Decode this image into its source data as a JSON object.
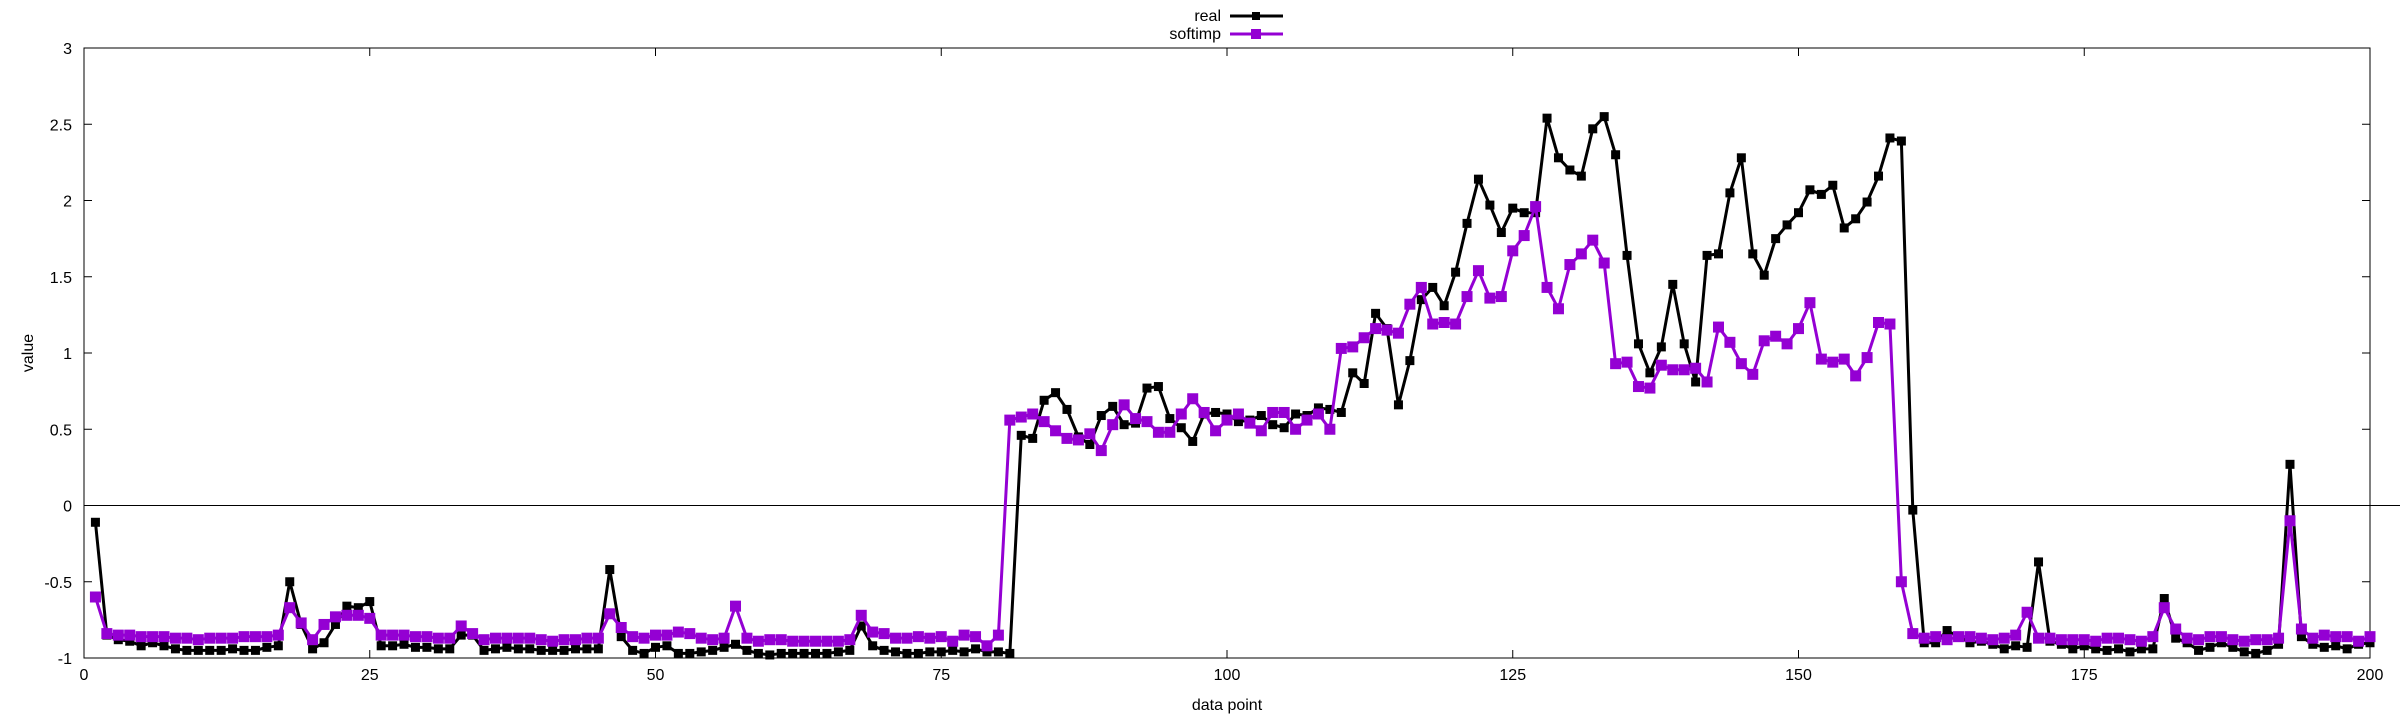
{
  "chart_data": {
    "type": "line",
    "xlabel": "data point",
    "ylabel": "value",
    "xlim": [
      0,
      200
    ],
    "ylim": [
      -1,
      3
    ],
    "xticks": [
      "0",
      "25",
      "50",
      "75",
      "100",
      "125",
      "150",
      "175",
      "200"
    ],
    "yticks": [
      "-1",
      "-0.5",
      "0",
      "0.5",
      "1",
      "1.5",
      "2",
      "2.5",
      "3"
    ],
    "zero_line": true,
    "grid": false,
    "legend_position": "top-center",
    "x": [
      1,
      2,
      3,
      4,
      5,
      6,
      7,
      8,
      9,
      10,
      11,
      12,
      13,
      14,
      15,
      16,
      17,
      18,
      19,
      20,
      21,
      22,
      23,
      24,
      25,
      26,
      27,
      28,
      29,
      30,
      31,
      32,
      33,
      34,
      35,
      36,
      37,
      38,
      39,
      40,
      41,
      42,
      43,
      44,
      45,
      46,
      47,
      48,
      49,
      50,
      51,
      52,
      53,
      54,
      55,
      56,
      57,
      58,
      59,
      60,
      61,
      62,
      63,
      64,
      65,
      66,
      67,
      68,
      69,
      70,
      71,
      72,
      73,
      74,
      75,
      76,
      77,
      78,
      79,
      80,
      81,
      82,
      83,
      84,
      85,
      86,
      87,
      88,
      89,
      90,
      91,
      92,
      93,
      94,
      95,
      96,
      97,
      98,
      99,
      100,
      101,
      102,
      103,
      104,
      105,
      106,
      107,
      108,
      109,
      110,
      111,
      112,
      113,
      114,
      115,
      116,
      117,
      118,
      119,
      120,
      121,
      122,
      123,
      124,
      125,
      126,
      127,
      128,
      129,
      130,
      131,
      132,
      133,
      134,
      135,
      136,
      137,
      138,
      139,
      140,
      141,
      142,
      143,
      144,
      145,
      146,
      147,
      148,
      149,
      150,
      151,
      152,
      153,
      154,
      155,
      156,
      157,
      158,
      159,
      160,
      161,
      162,
      163,
      164,
      165,
      166,
      167,
      168,
      169,
      170,
      171,
      172,
      173,
      174,
      175,
      176,
      177,
      178,
      179,
      180,
      181,
      182,
      183,
      184,
      185,
      186,
      187,
      188,
      189,
      190,
      191,
      192,
      193,
      194,
      195,
      196,
      197,
      198,
      199,
      200
    ],
    "series": [
      {
        "name": "real",
        "color": "#000000",
        "values": [
          -0.11,
          -0.85,
          -0.88,
          -0.89,
          -0.92,
          -0.9,
          -0.92,
          -0.94,
          -0.95,
          -0.95,
          -0.95,
          -0.95,
          -0.94,
          -0.95,
          -0.95,
          -0.93,
          -0.92,
          -0.5,
          -0.78,
          -0.94,
          -0.9,
          -0.78,
          -0.66,
          -0.67,
          -0.63,
          -0.92,
          -0.92,
          -0.91,
          -0.93,
          -0.93,
          -0.94,
          -0.94,
          -0.85,
          -0.85,
          -0.95,
          -0.94,
          -0.93,
          -0.94,
          -0.94,
          -0.95,
          -0.95,
          -0.95,
          -0.94,
          -0.94,
          -0.94,
          -0.42,
          -0.86,
          -0.95,
          -0.97,
          -0.93,
          -0.92,
          -0.97,
          -0.97,
          -0.96,
          -0.95,
          -0.93,
          -0.91,
          -0.95,
          -0.97,
          -0.98,
          -0.97,
          -0.97,
          -0.97,
          -0.97,
          -0.97,
          -0.96,
          -0.95,
          -0.79,
          -0.92,
          -0.95,
          -0.96,
          -0.97,
          -0.97,
          -0.96,
          -0.96,
          -0.95,
          -0.96,
          -0.94,
          -0.96,
          -0.96,
          -0.97,
          0.46,
          0.44,
          0.69,
          0.74,
          0.63,
          0.45,
          0.4,
          0.59,
          0.65,
          0.53,
          0.54,
          0.77,
          0.78,
          0.57,
          0.51,
          0.42,
          0.6,
          0.61,
          0.6,
          0.55,
          0.56,
          0.59,
          0.53,
          0.51,
          0.6,
          0.59,
          0.64,
          0.63,
          0.61,
          0.87,
          0.8,
          1.26,
          1.16,
          0.66,
          0.95,
          1.35,
          1.43,
          1.31,
          1.53,
          1.85,
          2.14,
          1.97,
          1.79,
          1.95,
          1.92,
          1.92,
          2.54,
          2.28,
          2.2,
          2.16,
          2.47,
          2.55,
          2.3,
          1.64,
          1.06,
          0.87,
          1.04,
          1.45,
          1.06,
          0.81,
          1.64,
          1.65,
          2.05,
          2.28,
          1.65,
          1.51,
          1.75,
          1.84,
          1.92,
          2.07,
          2.04,
          2.1,
          1.82,
          1.88,
          1.99,
          2.16,
          2.41,
          2.39,
          -0.03,
          -0.9,
          -0.9,
          -0.82,
          -0.86,
          -0.9,
          -0.89,
          -0.91,
          -0.94,
          -0.92,
          -0.93,
          -0.37,
          -0.89,
          -0.91,
          -0.94,
          -0.92,
          -0.94,
          -0.95,
          -0.94,
          -0.96,
          -0.94,
          -0.94,
          -0.61,
          -0.87,
          -0.9,
          -0.95,
          -0.93,
          -0.9,
          -0.93,
          -0.96,
          -0.97,
          -0.95,
          -0.91,
          0.27,
          -0.86,
          -0.91,
          -0.93,
          -0.92,
          -0.94,
          -0.91,
          -0.9
        ]
      },
      {
        "name": "softimp",
        "color": "#9400d3",
        "values": [
          -0.6,
          -0.84,
          -0.85,
          -0.85,
          -0.86,
          -0.86,
          -0.86,
          -0.87,
          -0.87,
          -0.88,
          -0.87,
          -0.87,
          -0.87,
          -0.86,
          -0.86,
          -0.86,
          -0.85,
          -0.67,
          -0.77,
          -0.88,
          -0.78,
          -0.73,
          -0.72,
          -0.72,
          -0.74,
          -0.85,
          -0.85,
          -0.85,
          -0.86,
          -0.86,
          -0.87,
          -0.87,
          -0.79,
          -0.84,
          -0.88,
          -0.87,
          -0.87,
          -0.87,
          -0.87,
          -0.88,
          -0.89,
          -0.88,
          -0.88,
          -0.87,
          -0.87,
          -0.71,
          -0.8,
          -0.86,
          -0.87,
          -0.85,
          -0.85,
          -0.83,
          -0.84,
          -0.87,
          -0.88,
          -0.87,
          -0.66,
          -0.87,
          -0.89,
          -0.88,
          -0.88,
          -0.89,
          -0.89,
          -0.89,
          -0.89,
          -0.89,
          -0.88,
          -0.72,
          -0.83,
          -0.84,
          -0.87,
          -0.87,
          -0.86,
          -0.87,
          -0.86,
          -0.89,
          -0.85,
          -0.86,
          -0.92,
          -0.85,
          0.56,
          0.58,
          0.6,
          0.55,
          0.49,
          0.44,
          0.43,
          0.47,
          0.36,
          0.53,
          0.66,
          0.57,
          0.55,
          0.48,
          0.48,
          0.6,
          0.7,
          0.61,
          0.49,
          0.56,
          0.6,
          0.54,
          0.49,
          0.61,
          0.61,
          0.5,
          0.56,
          0.6,
          0.5,
          1.03,
          1.04,
          1.1,
          1.16,
          1.15,
          1.13,
          1.32,
          1.43,
          1.19,
          1.2,
          1.19,
          1.37,
          1.54,
          1.36,
          1.37,
          1.67,
          1.77,
          1.96,
          1.43,
          1.29,
          1.58,
          1.65,
          1.74,
          1.59,
          0.93,
          0.94,
          0.78,
          0.77,
          0.92,
          0.89,
          0.89,
          0.9,
          0.81,
          1.17,
          1.07,
          0.93,
          0.86,
          1.08,
          1.11,
          1.06,
          1.16,
          1.33,
          0.96,
          0.94,
          0.96,
          0.85,
          0.97,
          1.2,
          1.19,
          -0.5,
          -0.84,
          -0.87,
          -0.86,
          -0.88,
          -0.86,
          -0.86,
          -0.87,
          -0.88,
          -0.87,
          -0.85,
          -0.7,
          -0.87,
          -0.87,
          -0.88,
          -0.88,
          -0.88,
          -0.89,
          -0.87,
          -0.87,
          -0.88,
          -0.89,
          -0.86,
          -0.67,
          -0.81,
          -0.87,
          -0.88,
          -0.86,
          -0.86,
          -0.88,
          -0.89,
          -0.88,
          -0.88,
          -0.87,
          -0.1,
          -0.81,
          -0.87,
          -0.85,
          -0.86,
          -0.86,
          -0.89,
          -0.86
        ]
      }
    ]
  }
}
